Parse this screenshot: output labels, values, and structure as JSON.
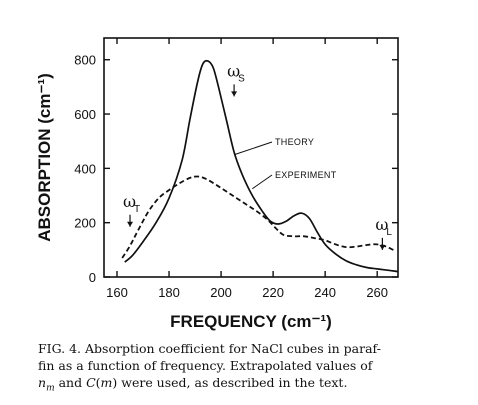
{
  "chart_data": {
    "type": "line",
    "title": "",
    "xlabel": "FREQUENCY",
    "xlabel_unit": "(cm⁻¹)",
    "ylabel": "ABSORPTION",
    "ylabel_unit": "(cm⁻¹)",
    "xlim": [
      155,
      268
    ],
    "ylim": [
      0,
      880
    ],
    "x_ticks": [
      160,
      180,
      200,
      220,
      240,
      260
    ],
    "y_ticks": [
      0,
      200,
      400,
      600,
      800
    ],
    "grid": false,
    "legend": "none",
    "series": [
      {
        "name": "THEORY",
        "style": "solid",
        "x": [
          163,
          166,
          170,
          175,
          180,
          185,
          188,
          191,
          193,
          195,
          197,
          199,
          202,
          205,
          208,
          212,
          216,
          219,
          222,
          225,
          228,
          231,
          234,
          237,
          240,
          244,
          248,
          252,
          256,
          260,
          264,
          268
        ],
        "y": [
          55,
          80,
          130,
          200,
          290,
          430,
          580,
          720,
          785,
          795,
          770,
          700,
          580,
          460,
          380,
          300,
          240,
          205,
          195,
          205,
          225,
          235,
          215,
          165,
          120,
          85,
          60,
          45,
          35,
          30,
          25,
          20
        ]
      },
      {
        "name": "EXPERIMENT",
        "style": "dashed",
        "x": [
          162,
          165,
          168,
          172,
          176,
          180,
          184,
          188,
          191,
          194,
          198,
          202,
          206,
          210,
          214,
          218,
          221,
          224,
          228,
          232,
          236,
          240,
          244,
          248,
          252,
          256,
          260,
          264,
          267
        ],
        "y": [
          70,
          115,
          170,
          240,
          290,
          320,
          345,
          365,
          370,
          362,
          340,
          315,
          290,
          265,
          240,
          210,
          180,
          155,
          150,
          150,
          143,
          135,
          120,
          110,
          112,
          118,
          120,
          110,
          95
        ]
      }
    ],
    "annotations": [
      {
        "text": "THEORY",
        "target": "THEORY"
      },
      {
        "text": "EXPERIMENT",
        "target": "EXPERIMENT"
      },
      {
        "text": "ω",
        "subscript": "S",
        "arrow": "down",
        "x": 205,
        "y": 665
      },
      {
        "text": "ω",
        "subscript": "T",
        "arrow": "down",
        "x": 165,
        "y": 185
      },
      {
        "text": "ω",
        "subscript": "L",
        "arrow": "down",
        "x": 262,
        "y": 100
      }
    ]
  },
  "caption": {
    "lines": [
      "FIG. 4.  Absorption coefficient for NaCl cubes in paraf-",
      "fin as a function of frequency.  Extrapolated values of",
      "n_m and C(m) were used, as described in the text."
    ]
  }
}
